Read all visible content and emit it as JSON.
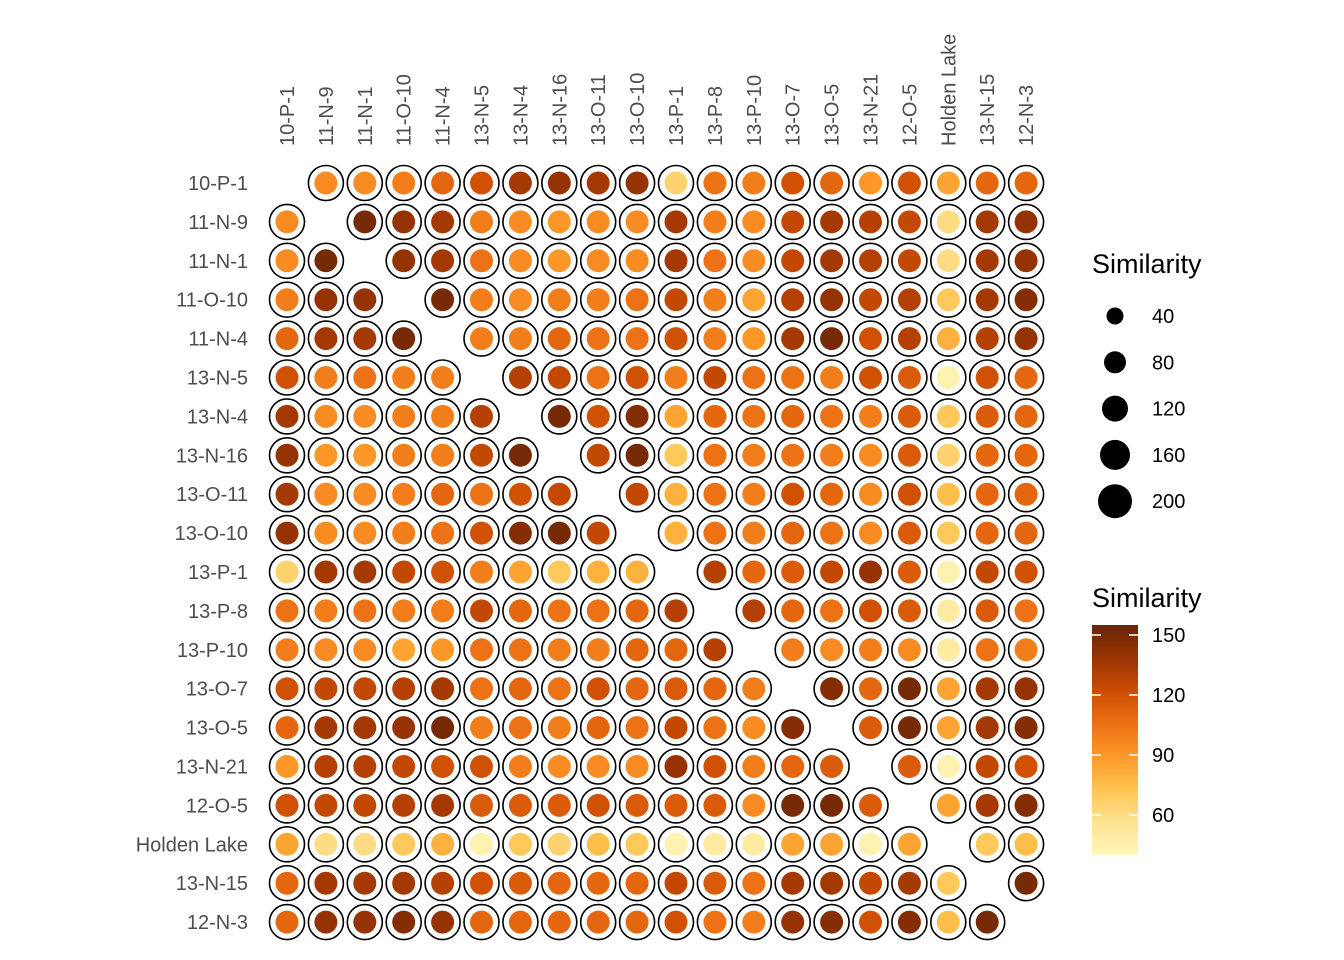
{
  "chart_data": {
    "type": "heatmap",
    "title": "",
    "xlabel": "",
    "ylabel": "",
    "columns": [
      "10-P-1",
      "11-N-9",
      "11-N-1",
      "11-O-10",
      "11-N-4",
      "13-N-5",
      "13-N-4",
      "13-N-16",
      "13-O-11",
      "13-O-10",
      "13-P-1",
      "13-P-8",
      "13-P-10",
      "13-O-7",
      "13-O-5",
      "13-N-21",
      "12-O-5",
      "Holden Lake",
      "13-N-15",
      "12-N-3"
    ],
    "rows": [
      "10-P-1",
      "11-N-9",
      "11-N-1",
      "11-O-10",
      "11-N-4",
      "13-N-5",
      "13-N-4",
      "13-N-16",
      "13-O-11",
      "13-O-10",
      "13-P-1",
      "13-P-8",
      "13-P-10",
      "13-O-7",
      "13-O-5",
      "13-N-21",
      "12-O-5",
      "Holden Lake",
      "13-N-15",
      "12-N-3"
    ],
    "similarity": [
      [
        null,
        95,
        95,
        100,
        110,
        120,
        135,
        140,
        135,
        140,
        65,
        105,
        100,
        120,
        110,
        90,
        120,
        85,
        110,
        110
      ],
      [
        95,
        null,
        150,
        140,
        135,
        100,
        95,
        90,
        95,
        95,
        135,
        100,
        95,
        125,
        135,
        130,
        125,
        60,
        135,
        140
      ],
      [
        95,
        150,
        null,
        140,
        135,
        105,
        95,
        90,
        95,
        95,
        135,
        105,
        95,
        125,
        135,
        130,
        125,
        60,
        135,
        140
      ],
      [
        100,
        140,
        140,
        null,
        150,
        100,
        95,
        100,
        100,
        105,
        125,
        100,
        85,
        130,
        140,
        125,
        130,
        70,
        135,
        145
      ],
      [
        110,
        135,
        135,
        150,
        null,
        100,
        100,
        110,
        105,
        105,
        120,
        100,
        90,
        135,
        150,
        120,
        130,
        80,
        130,
        140
      ],
      [
        120,
        100,
        105,
        100,
        100,
        null,
        130,
        125,
        105,
        120,
        100,
        125,
        105,
        105,
        100,
        120,
        115,
        45,
        120,
        110
      ],
      [
        135,
        95,
        95,
        100,
        100,
        130,
        null,
        150,
        120,
        145,
        85,
        110,
        105,
        110,
        105,
        100,
        115,
        70,
        115,
        110
      ],
      [
        140,
        90,
        90,
        100,
        100,
        125,
        150,
        null,
        125,
        150,
        70,
        105,
        100,
        105,
        100,
        95,
        115,
        65,
        110,
        110
      ],
      [
        135,
        95,
        95,
        100,
        110,
        105,
        120,
        125,
        null,
        125,
        80,
        105,
        100,
        120,
        110,
        95,
        120,
        75,
        110,
        110
      ],
      [
        140,
        95,
        95,
        100,
        105,
        120,
        145,
        150,
        125,
        null,
        80,
        105,
        100,
        110,
        105,
        95,
        115,
        70,
        110,
        110
      ],
      [
        65,
        135,
        135,
        125,
        120,
        100,
        85,
        70,
        80,
        80,
        null,
        130,
        110,
        115,
        125,
        140,
        115,
        45,
        125,
        120
      ],
      [
        105,
        100,
        105,
        100,
        100,
        125,
        110,
        105,
        105,
        110,
        130,
        null,
        130,
        110,
        105,
        120,
        115,
        50,
        115,
        105
      ],
      [
        100,
        95,
        95,
        85,
        90,
        105,
        105,
        100,
        100,
        110,
        110,
        130,
        null,
        100,
        95,
        100,
        95,
        50,
        105,
        100
      ],
      [
        120,
        125,
        125,
        130,
        135,
        105,
        110,
        105,
        120,
        110,
        115,
        110,
        100,
        null,
        145,
        110,
        150,
        85,
        135,
        140
      ],
      [
        110,
        135,
        135,
        140,
        150,
        100,
        105,
        100,
        110,
        105,
        125,
        105,
        95,
        145,
        null,
        115,
        150,
        85,
        135,
        145
      ],
      [
        90,
        130,
        130,
        125,
        120,
        120,
        100,
        95,
        95,
        95,
        140,
        120,
        100,
        110,
        115,
        null,
        115,
        45,
        125,
        120
      ],
      [
        120,
        125,
        125,
        130,
        135,
        115,
        115,
        115,
        120,
        115,
        115,
        115,
        95,
        150,
        150,
        115,
        null,
        85,
        135,
        145
      ],
      [
        85,
        60,
        60,
        70,
        80,
        45,
        70,
        65,
        75,
        70,
        45,
        50,
        50,
        85,
        85,
        45,
        85,
        null,
        70,
        75
      ],
      [
        110,
        135,
        135,
        135,
        130,
        120,
        115,
        110,
        110,
        110,
        125,
        115,
        105,
        135,
        135,
        125,
        135,
        70,
        null,
        150
      ],
      [
        110,
        140,
        140,
        145,
        140,
        110,
        110,
        110,
        110,
        110,
        120,
        105,
        100,
        140,
        145,
        120,
        145,
        75,
        150,
        null
      ]
    ],
    "size_legend": {
      "title": "Similarity",
      "values": [
        40,
        80,
        120,
        160,
        200
      ],
      "labels": [
        "40",
        "80",
        "120",
        "160",
        "200"
      ]
    },
    "color_legend": {
      "title": "Similarity",
      "ticks": [
        60,
        90,
        120,
        150
      ],
      "labels": [
        "60",
        "90",
        "120",
        "150"
      ],
      "range": [
        40,
        155
      ]
    },
    "colors": [
      "#fff7bc",
      "#fee391",
      "#fec44f",
      "#fe9929",
      "#ec7014",
      "#cc4c02",
      "#993404",
      "#662506"
    ],
    "outline_color": "#000000",
    "legend_placement": "right",
    "grid": false
  }
}
